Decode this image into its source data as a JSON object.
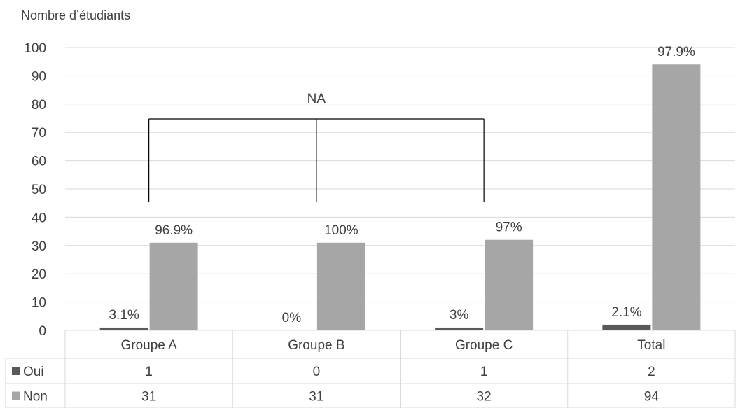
{
  "chart_data": {
    "type": "bar",
    "title": "",
    "ylabel": "Nombre d’étudiants",
    "xlabel": "",
    "ylim": [
      0,
      100
    ],
    "yticks": [
      0,
      10,
      20,
      30,
      40,
      50,
      60,
      70,
      80,
      90,
      100
    ],
    "grid": true,
    "legend": "data-table",
    "categories": [
      "Groupe A",
      "Groupe B",
      "Groupe C",
      "Total"
    ],
    "series": [
      {
        "name": "Oui",
        "values": [
          1,
          0,
          1,
          2
        ],
        "labels": [
          "3.1%",
          "0%",
          "3%",
          "2.1%"
        ],
        "color": "#595959"
      },
      {
        "name": "Non",
        "values": [
          31,
          31,
          32,
          94
        ],
        "labels": [
          "96.9%",
          "100%",
          "97%",
          "97.9%"
        ],
        "color": "#a6a6a6"
      }
    ],
    "annotations": [
      {
        "text": "NA",
        "type": "bracket",
        "spans": [
          "Groupe A",
          "Groupe B",
          "Groupe C"
        ]
      }
    ]
  }
}
